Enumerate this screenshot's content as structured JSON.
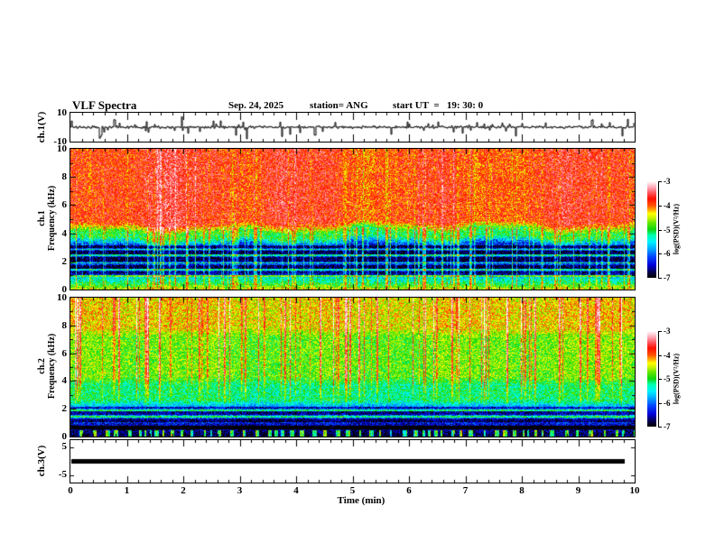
{
  "title": {
    "main": "VLF Spectra",
    "date": "Sep. 24, 2025",
    "station": "station= ANG",
    "start_ut": "start UT  =   19: 30: 0"
  },
  "x_axis": {
    "label": "Time (min)",
    "ticks": [
      "0",
      "1",
      "2",
      "3",
      "4",
      "5",
      "6",
      "7",
      "8",
      "9",
      "10"
    ],
    "min": 0,
    "max": 10,
    "minor_step_min": 0.2
  },
  "panels": {
    "ch1_wave": {
      "ylabel": "ch.1(V)",
      "yticks": [
        "10",
        "-10"
      ],
      "ylim": [
        -10,
        10
      ]
    },
    "spec1": {
      "ylabel_line1": "ch.1",
      "ylabel_line2": "Frequency (kHz)",
      "yticks": [
        "10",
        "8",
        "6",
        "4",
        "2",
        "0"
      ],
      "ylim_khz": [
        0,
        10
      ]
    },
    "spec2": {
      "ylabel_line1": "ch.2",
      "ylabel_line2": "Frequency (kHz)",
      "yticks": [
        "10",
        "8",
        "6",
        "4",
        "2",
        "0"
      ],
      "ylim_khz": [
        0,
        10
      ]
    },
    "ch3_wave": {
      "ylabel": "ch.3(V)",
      "yticks": [
        "5",
        "-5"
      ],
      "ylim": [
        -7.5,
        7.5
      ]
    }
  },
  "colorbar": {
    "label": "log(PSD)(V²/Hz)",
    "ticks": [
      "-3",
      "-4",
      "-5",
      "-6",
      "-7"
    ],
    "min": -7,
    "max": -3
  },
  "colormap_stops": [
    [
      0.0,
      "#000000"
    ],
    [
      0.055,
      "#06004a"
    ],
    [
      0.13,
      "#0000d8"
    ],
    [
      0.22,
      "#0046ff"
    ],
    [
      0.3,
      "#00aaff"
    ],
    [
      0.37,
      "#00f2ff"
    ],
    [
      0.44,
      "#00ffb0"
    ],
    [
      0.5,
      "#0fd60f"
    ],
    [
      0.57,
      "#63e800"
    ],
    [
      0.62,
      "#c8f400"
    ],
    [
      0.665,
      "#ffff00"
    ],
    [
      0.705,
      "#ffa800"
    ],
    [
      0.75,
      "#ff5000"
    ],
    [
      0.82,
      "#ff0f00"
    ],
    [
      0.875,
      "#ff4f55"
    ],
    [
      0.93,
      "#ff9fae"
    ],
    [
      1.0,
      "#ffffff"
    ]
  ],
  "chart_data": [
    {
      "type": "line",
      "name": "ch1-voltage-waveform",
      "ylabel": "ch.1(V)",
      "ylim": [
        -10,
        10
      ],
      "xlim": [
        0,
        10
      ],
      "summary": "broadband noise, mean 0 V, rms about 1 V, dense impulsive sferic spikes up to +/-10 V across full 0-10 min record",
      "gen": {
        "seed": 11,
        "noise_v": 1.1,
        "spike_prob": 0.09,
        "spike_v": 4.5,
        "big_spike_prob": 0.014,
        "big_spike_v": 8.0
      }
    },
    {
      "type": "heatmap",
      "name": "ch1-spectrogram",
      "xlim_min": [
        0,
        10
      ],
      "freq_range_khz": [
        0,
        10
      ],
      "value_label": "log(PSD)(V²/Hz)",
      "value_range": [
        -7,
        -3
      ],
      "freq_profile_logpsd": [
        [
          0,
          0.3,
          -4.45
        ],
        [
          0.3,
          1.0,
          -5.3
        ],
        [
          1.0,
          3.4,
          -6.25
        ],
        [
          3.4,
          4.4,
          -5.0
        ],
        [
          4.4,
          10,
          -3.78
        ]
      ],
      "dark_bands_khz": [
        [
          1.05,
          1.3
        ],
        [
          1.5,
          1.75
        ],
        [
          2.0,
          2.3
        ],
        [
          2.5,
          2.75
        ],
        [
          2.95,
          3.15
        ]
      ],
      "bright_lines_khz": [
        0.95,
        1.42,
        1.9,
        2.42,
        2.86
      ],
      "summary": "strong red band (about -3.8) above 4.4 kHz with vertical sferic streaks; green-yellow transition 3.4-4.4 kHz; blue region (about -6.2) 1-3.4 kHz cut by dark horizontal bands and bright vertical streaks; cyan-green floor below 1 kHz",
      "gen": {
        "seed": 42,
        "streaks": 115,
        "streak_gain_low": 0.95,
        "streak_gain_high": 0.25,
        "noise": 0.95,
        "boundary_khz": 4.4
      }
    },
    {
      "type": "heatmap",
      "name": "ch2-spectrogram",
      "xlim_min": [
        0,
        10
      ],
      "freq_range_khz": [
        0,
        10
      ],
      "value_label": "log(PSD)(V²/Hz)",
      "value_range": [
        -7,
        -3
      ],
      "freq_profile_logpsd": [
        [
          0,
          0.4,
          -6.8
        ],
        [
          0.4,
          1.0,
          -6.65
        ],
        [
          1.0,
          2.3,
          -6.0
        ],
        [
          2.3,
          4.0,
          -5.15
        ],
        [
          4.0,
          7.5,
          -4.75
        ],
        [
          7.5,
          10,
          -4.35
        ]
      ],
      "dark_bands_khz": [
        [
          0.55,
          0.8
        ],
        [
          1.05,
          1.3
        ],
        [
          1.55,
          1.8
        ],
        [
          2.0,
          2.15
        ]
      ],
      "bright_lines_khz": [
        1.42,
        1.9
      ],
      "summary": "yellow-green upper band (about -4.4) above 7.5 kHz with red vertical streaks reaching down to 2 kHz; green mid band 4-7.5 kHz; cyan 2.3-4 kHz; blue with dark horizontal lines 1-2.3 kHz; near-black floor below 1 kHz with periodic cyan blobs below 0.45 kHz",
      "gen": {
        "seed": 77,
        "streaks": 80,
        "streak_fmin": 1.8,
        "noise": 0.9,
        "bottom_blobs_khz": 0.45,
        "blob_boost": 1.45
      }
    },
    {
      "type": "line",
      "name": "ch3-voltage-flatline",
      "ylabel": "ch.3(V)",
      "ylim": [
        -7.5,
        7.5
      ],
      "xlim": [
        0,
        10
      ],
      "summary": "constant 0 V thick flat trace ending at about 9.8 min",
      "gen": {
        "value": 0,
        "x_end_min": 9.8,
        "thickness_px": 5
      }
    }
  ]
}
